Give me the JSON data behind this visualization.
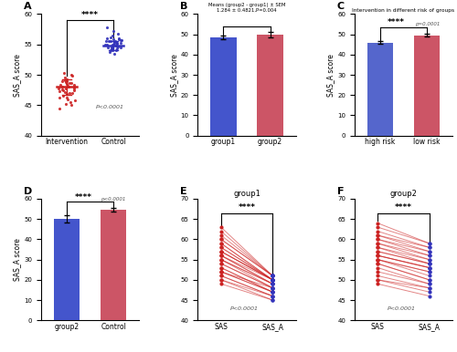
{
  "A": {
    "intervention_dots": [
      44.5,
      45.0,
      45.2,
      45.5,
      45.8,
      46.0,
      46.2,
      46.3,
      46.5,
      46.8,
      47.0,
      47.0,
      47.2,
      47.3,
      47.4,
      47.5,
      47.6,
      47.7,
      47.8,
      47.8,
      48.0,
      48.0,
      48.1,
      48.2,
      48.3,
      48.4,
      48.5,
      48.6,
      48.7,
      48.8,
      48.9,
      49.0,
      49.1,
      49.3,
      49.5,
      49.8,
      50.0,
      50.3
    ],
    "control_dots": [
      53.5,
      53.8,
      54.0,
      54.0,
      54.1,
      54.2,
      54.3,
      54.4,
      54.5,
      54.5,
      54.5,
      54.6,
      54.7,
      54.7,
      54.8,
      54.9,
      55.0,
      55.0,
      55.0,
      55.1,
      55.2,
      55.2,
      55.3,
      55.4,
      55.5,
      55.5,
      55.5,
      55.6,
      55.7,
      55.7,
      55.8,
      55.9,
      56.0,
      56.0,
      56.2,
      56.5,
      56.8,
      57.2,
      57.8
    ],
    "intervention_mean": 48.0,
    "control_mean": 54.8,
    "intervention_sd": 1.3,
    "control_sd": 0.8,
    "ylabel": "SAS_A score",
    "xlabel_left": "Intervention",
    "xlabel_right": "Control",
    "ylim": [
      40,
      60
    ],
    "yticks": [
      40,
      45,
      50,
      55,
      60
    ],
    "ptext": "P<0.0001",
    "color_intervention": "#CC2222",
    "color_control": "#3333BB",
    "sig_text": "****"
  },
  "B": {
    "group1_mean": 48.5,
    "group2_mean": 49.8,
    "group1_sem": 0.7,
    "group2_sem": 1.4,
    "ylabel": "SAS_A score",
    "ylim": [
      0,
      60
    ],
    "yticks": [
      0,
      10,
      20,
      30,
      40,
      50,
      60
    ],
    "color_group1": "#4455CC",
    "color_group2": "#CC5566",
    "title": "Means (group2 - group1) ± SEM\n1.284 ± 0.4821,P=0.004",
    "xlabel_left": "group1",
    "xlabel_right": "group2"
  },
  "C": {
    "high_risk_mean": 46.0,
    "low_risk_mean": 49.5,
    "high_risk_sem": 0.5,
    "low_risk_sem": 0.7,
    "ylabel": "SAS_A score",
    "ylim": [
      0,
      60
    ],
    "yticks": [
      0,
      10,
      20,
      30,
      40,
      50,
      60
    ],
    "color_high": "#5566CC",
    "color_low": "#CC5566",
    "title": "Intervention in different risk of groups",
    "sig_text": "****",
    "ptext": "p=0.0001",
    "xlabel_left": "high risk",
    "xlabel_right": "low risk"
  },
  "D": {
    "group2_mean": 50.0,
    "control_mean": 54.5,
    "group2_sem": 1.8,
    "control_sem": 0.8,
    "ylabel": "SAS_A score",
    "ylim": [
      0,
      60
    ],
    "yticks": [
      0,
      10,
      20,
      30,
      40,
      50,
      60
    ],
    "color_group2": "#4455CC",
    "color_control": "#CC5566",
    "sig_text": "****",
    "ptext": "p<0.0001",
    "xlabel_left": "group2",
    "xlabel_right": "Control"
  },
  "E": {
    "title": "group1",
    "sas_values": [
      63,
      62,
      61,
      60,
      60,
      59,
      59,
      58,
      58,
      57,
      57,
      57,
      56,
      56,
      56,
      55,
      55,
      55,
      54,
      54,
      53,
      53,
      52,
      52,
      51,
      51,
      50,
      50,
      49,
      52
    ],
    "sas_a_values": [
      51,
      51,
      51,
      51,
      51,
      50,
      50,
      50,
      50,
      50,
      50,
      50,
      50,
      49,
      49,
      49,
      49,
      48,
      48,
      48,
      47,
      47,
      47,
      47,
      46,
      46,
      46,
      45,
      45,
      48
    ],
    "ylim": [
      40,
      70
    ],
    "yticks": [
      40,
      45,
      50,
      55,
      60,
      65,
      70
    ],
    "ptext": "P<0.0001",
    "sig_text": "****",
    "color_sas": "#CC2222",
    "color_sas_a": "#3333BB",
    "xlabel_sas": "SAS",
    "xlabel_sas_a": "SAS_A"
  },
  "F": {
    "title": "group2",
    "sas_values": [
      64,
      63,
      62,
      61,
      61,
      60,
      60,
      59,
      59,
      58,
      58,
      57,
      57,
      56,
      56,
      56,
      55,
      55,
      55,
      54,
      54,
      53,
      52,
      51,
      50,
      50,
      49
    ],
    "sas_a_values": [
      59,
      59,
      58,
      58,
      57,
      57,
      56,
      56,
      55,
      55,
      54,
      54,
      54,
      53,
      53,
      53,
      52,
      52,
      51,
      50,
      50,
      49,
      49,
      48,
      48,
      47,
      46
    ],
    "ylim": [
      40,
      70
    ],
    "yticks": [
      40,
      45,
      50,
      55,
      60,
      65,
      70
    ],
    "ptext": "P<0.0001",
    "sig_text": "****",
    "color_sas": "#CC2222",
    "color_sas_a": "#3333BB",
    "xlabel_sas": "SAS",
    "xlabel_sas_a": "SAS_A"
  }
}
